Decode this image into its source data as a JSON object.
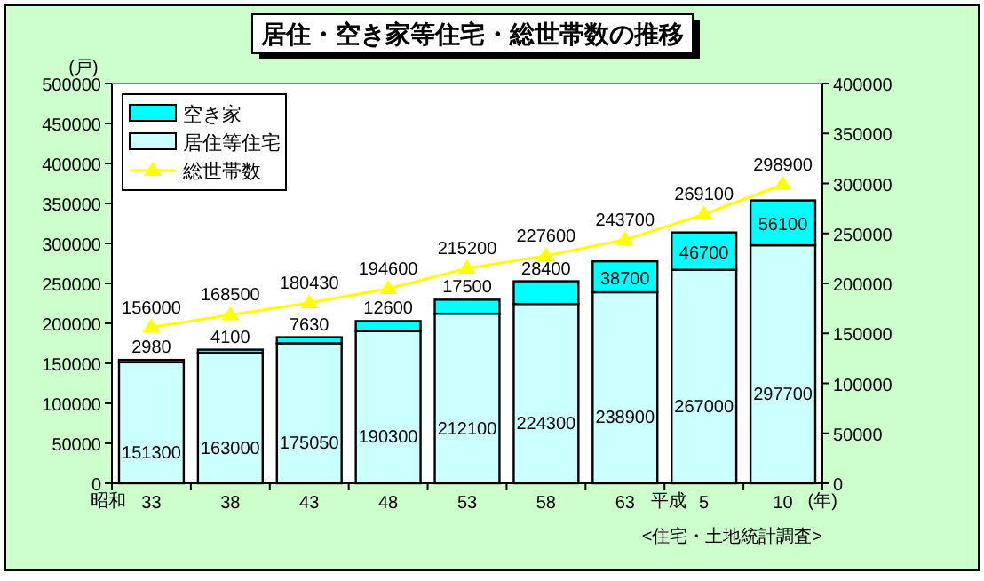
{
  "chart_data": {
    "type": "bar",
    "title": "居住・空き家等住宅・総世帯数の推移",
    "categories": [
      "33",
      "38",
      "43",
      "48",
      "53",
      "58",
      "63",
      "5",
      "10"
    ],
    "stacked": true,
    "series": [
      {
        "name": "居住等住宅",
        "color": "#ccffff",
        "values": [
          151300,
          163000,
          175050,
          190300,
          212100,
          224300,
          238900,
          267000,
          297700
        ]
      },
      {
        "name": "空き家",
        "color": "#00ffff",
        "values": [
          2980,
          4100,
          7630,
          12600,
          17500,
          28400,
          38700,
          46700,
          56100
        ]
      },
      {
        "name": "総世帯数",
        "type": "line",
        "axis": "y2",
        "color": "#ffff00",
        "marker": "triangle",
        "values": [
          156000,
          168500,
          180430,
          194600,
          215200,
          227600,
          243700,
          269100,
          298900
        ]
      }
    ],
    "ylim": [
      0,
      500000
    ],
    "yticks": [
      0,
      50000,
      100000,
      150000,
      200000,
      250000,
      300000,
      350000,
      400000,
      450000,
      500000
    ],
    "y2lim": [
      0,
      400000
    ],
    "y2ticks": [
      0,
      50000,
      100000,
      150000,
      200000,
      250000,
      300000,
      350000,
      400000
    ],
    "data_labels": true,
    "legend": "top left",
    "grid": false,
    "annotations": [
      "(戸)",
      "昭和",
      "平成",
      "(年)",
      "<住宅・土地統計調査>"
    ]
  }
}
